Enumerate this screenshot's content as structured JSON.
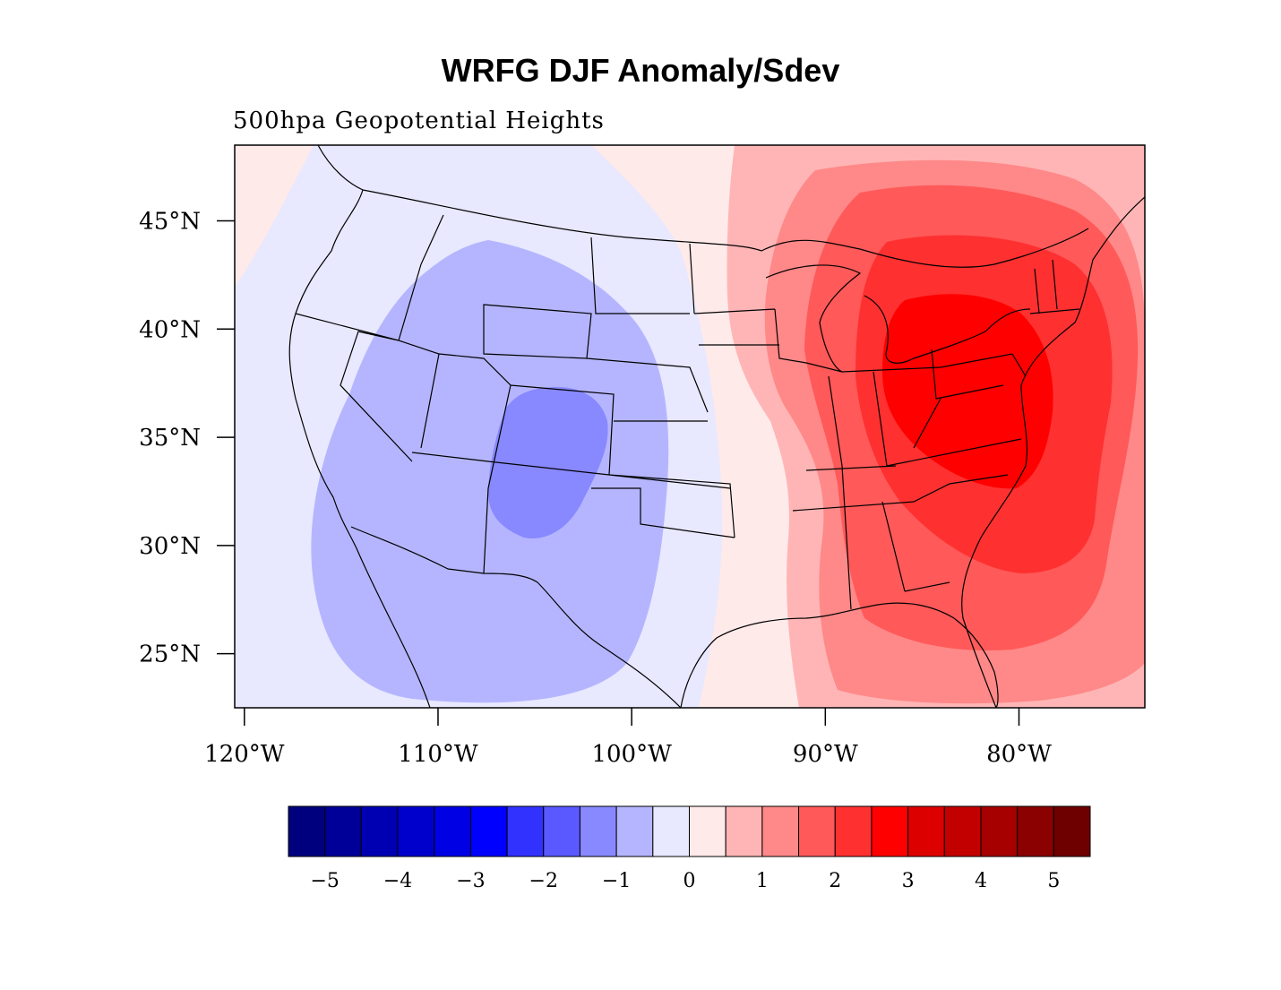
{
  "title": "WRFG DJF Anomaly/Sdev",
  "subtitle": "500hpa Geopotential Heights",
  "map": {
    "lon_range": [
      -120.5,
      -73.5
    ],
    "lat_range": [
      22.5,
      48.5
    ],
    "lat_ticks": [
      {
        "value": 45,
        "label": "45°N"
      },
      {
        "value": 40,
        "label": "40°N"
      },
      {
        "value": 35,
        "label": "35°N"
      },
      {
        "value": 30,
        "label": "30°N"
      },
      {
        "value": 25,
        "label": "25°N"
      }
    ],
    "lon_ticks": [
      {
        "value": -120,
        "label": "120°W"
      },
      {
        "value": -110,
        "label": "110°W"
      },
      {
        "value": -100,
        "label": "100°W"
      },
      {
        "value": -90,
        "label": "90°W"
      },
      {
        "value": -80,
        "label": "80°W"
      }
    ]
  },
  "colorbar": {
    "colors": [
      "#00007f",
      "#000099",
      "#0000b2",
      "#0000cc",
      "#0000e5",
      "#0000ff",
      "#3232ff",
      "#5959ff",
      "#8888ff",
      "#b5b5ff",
      "#e8e8ff",
      "#ffeaea",
      "#ffb5b5",
      "#ff8888",
      "#ff5959",
      "#ff3030",
      "#ff0000",
      "#dd0000",
      "#c20000",
      "#a60000",
      "#8b0000",
      "#6f0000"
    ],
    "labels": [
      "−5",
      "−4",
      "−3",
      "−2",
      "−1",
      "0",
      "1",
      "2",
      "3",
      "4",
      "5"
    ]
  }
}
